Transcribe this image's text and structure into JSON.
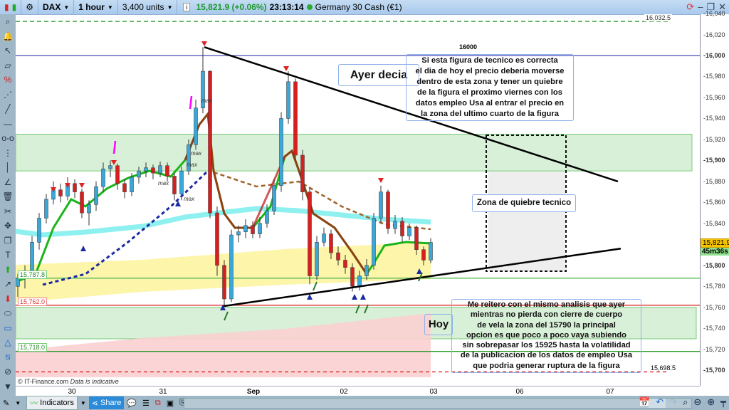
{
  "toolbar": {
    "instrument": "DAX",
    "timeframe": "1 hour",
    "units": "3,400 units",
    "last_price": "15,821.9 (+0.06%)",
    "time": "23:13:14",
    "instrument_name": "Germany 30 Cash (€1)",
    "icons": [
      "candlestick-icon",
      "settings-icon",
      "info-icon",
      "refresh-icon",
      "minimize-icon",
      "restore-icon",
      "close-icon"
    ]
  },
  "left_tools": [
    "zoom-icon",
    "alert-bell-icon",
    "pointer-icon",
    "ruler-icon",
    "percent-icon",
    "segment-icon",
    "trendline-icon",
    "horizontal-line-icon",
    "hsegment-icon",
    "vsegment-icon",
    "vertical-line-icon",
    "angle-icon",
    "trash-icon",
    "tools-icon",
    "move-icon",
    "copy-icon",
    "text-icon",
    "up-arrow-icon",
    "diagonal-arrow-icon",
    "down-arrow-icon",
    "ellipse-icon",
    "rectangle-icon",
    "triangle-icon",
    "channel-icon",
    "ellipse-2-icon",
    "more-icon"
  ],
  "price_axis": {
    "ticks": [
      "16,040",
      "16,020",
      "16,000",
      "15,980",
      "15,960",
      "15,940",
      "15,920",
      "15,900",
      "15,880",
      "15,860",
      "15,840",
      "15,800",
      "15,780",
      "15,760",
      "15,740",
      "15,720",
      "15,700"
    ],
    "current_price": "15,821.9",
    "countdown": "45m36s"
  },
  "date_axis": [
    "30",
    "31",
    "Sep",
    "02",
    "03",
    "06",
    "07"
  ],
  "levels": {
    "top_dashed": "16,032.5",
    "round_line": "16000",
    "support_1": "15,787.8",
    "support_2": "15,762.0",
    "support_3": "15,718.0",
    "bottom_dashed": "15,698.5"
  },
  "annotations": {
    "ayer": "Ayer decia",
    "ayer_text": [
      "Si esta figura de tecnico es correcta",
      "el dia de hoy el precio deberia moverse",
      "dentro de esta zona y tener un quiebre",
      "de la figura el proximo viernes con los",
      "datos empleo Usa al entrar el precio en",
      "la zona del ultimo cuarto de la figura"
    ],
    "zona": "Zona de quiebre tecnico",
    "hoy": "Hoy",
    "hoy_text": [
      "Me reitero con el mismo analisis que ayer",
      "mientras no pierda con cierre de cuerpo",
      "de vela la zona del 15790 la principal",
      "opcion es que poco a poco vaya subiendo",
      "sin sobrepasar los 15925 hasta la volatilidad",
      "de la publicacion de los datos de empleo Usa",
      "que podria generar ruptura de la figura"
    ],
    "max_label": "max"
  },
  "footer": {
    "credit": "© IT-Finance.com",
    "credit_note": "Data is indicative",
    "indicators": "Indicators",
    "share": "Share"
  },
  "colors": {
    "up": "#3aa7d8",
    "down": "#d62020",
    "accent_green": "#1f9a2c",
    "zone": "#d8efd8"
  },
  "chart_data": {
    "type": "candlestick",
    "ylim": [
      15690,
      16045
    ],
    "x_tick_labels": [
      "30",
      "31",
      "Sep",
      "02",
      "03",
      "06",
      "07"
    ],
    "ohlc": [
      [
        15780,
        15792,
        15770,
        15788
      ],
      [
        15788,
        15800,
        15778,
        15795
      ],
      [
        15795,
        15828,
        15790,
        15822
      ],
      [
        15822,
        15850,
        15815,
        15845
      ],
      [
        15845,
        15868,
        15840,
        15863
      ],
      [
        15863,
        15880,
        15858,
        15872
      ],
      [
        15872,
        15878,
        15860,
        15866
      ],
      [
        15866,
        15884,
        15862,
        15878
      ],
      [
        15878,
        15882,
        15864,
        15870
      ],
      [
        15870,
        15873,
        15845,
        15850
      ],
      [
        15850,
        15862,
        15838,
        15858
      ],
      [
        15858,
        15880,
        15852,
        15875
      ],
      [
        15875,
        15898,
        15870,
        15892
      ],
      [
        15892,
        15900,
        15884,
        15895
      ],
      [
        15895,
        15897,
        15872,
        15878
      ],
      [
        15878,
        15882,
        15864,
        15870
      ],
      [
        15870,
        15888,
        15866,
        15884
      ],
      [
        15884,
        15894,
        15878,
        15890
      ],
      [
        15890,
        15898,
        15884,
        15893
      ],
      [
        15893,
        15896,
        15882,
        15888
      ],
      [
        15888,
        15899,
        15884,
        15895
      ],
      [
        15895,
        15898,
        15880,
        15885
      ],
      [
        15885,
        15888,
        15862,
        15868
      ],
      [
        15868,
        15894,
        15862,
        15890
      ],
      [
        15890,
        15920,
        15886,
        15915
      ],
      [
        15915,
        15958,
        15910,
        15950
      ],
      [
        15950,
        16008,
        15945,
        15985
      ],
      [
        15985,
        15986,
        15845,
        15850
      ],
      [
        15850,
        15856,
        15790,
        15800
      ],
      [
        15800,
        15805,
        15761,
        15768
      ],
      [
        15768,
        15834,
        15765,
        15829
      ],
      [
        15829,
        15838,
        15822,
        15832
      ],
      [
        15832,
        15844,
        15826,
        15838
      ],
      [
        15838,
        15842,
        15826,
        15830
      ],
      [
        15830,
        15846,
        15826,
        15840
      ],
      [
        15840,
        15858,
        15836,
        15852
      ],
      [
        15852,
        15882,
        15848,
        15876
      ],
      [
        15876,
        15946,
        15870,
        15940
      ],
      [
        15940,
        15985,
        15935,
        15975
      ],
      [
        15975,
        15978,
        15900,
        15905
      ],
      [
        15905,
        15910,
        15862,
        15870
      ],
      [
        15870,
        15874,
        15782,
        15790
      ],
      [
        15790,
        15828,
        15786,
        15822
      ],
      [
        15822,
        15836,
        15818,
        15830
      ],
      [
        15830,
        15834,
        15806,
        15812
      ],
      [
        15812,
        15818,
        15800,
        15805
      ],
      [
        15805,
        15810,
        15792,
        15798
      ],
      [
        15798,
        15802,
        15775,
        15780
      ],
      [
        15780,
        15795,
        15776,
        15790
      ],
      [
        15790,
        15806,
        15786,
        15800
      ],
      [
        15800,
        15850,
        15796,
        15845
      ],
      [
        15845,
        15876,
        15840,
        15870
      ],
      [
        15870,
        15872,
        15830,
        15835
      ],
      [
        15835,
        15848,
        15830,
        15842
      ],
      [
        15842,
        15846,
        15822,
        15828
      ],
      [
        15828,
        15840,
        15824,
        15836
      ],
      [
        15836,
        15838,
        15810,
        15815
      ],
      [
        15815,
        15818,
        15800,
        15805
      ],
      [
        15805,
        15826,
        15802,
        15821.9
      ]
    ],
    "trendlines": {
      "upper": [
        16008,
        15880
      ],
      "lower": [
        15761,
        15816
      ]
    },
    "zones": [
      [
        15890,
        15925
      ],
      [
        15730,
        15760
      ]
    ]
  }
}
